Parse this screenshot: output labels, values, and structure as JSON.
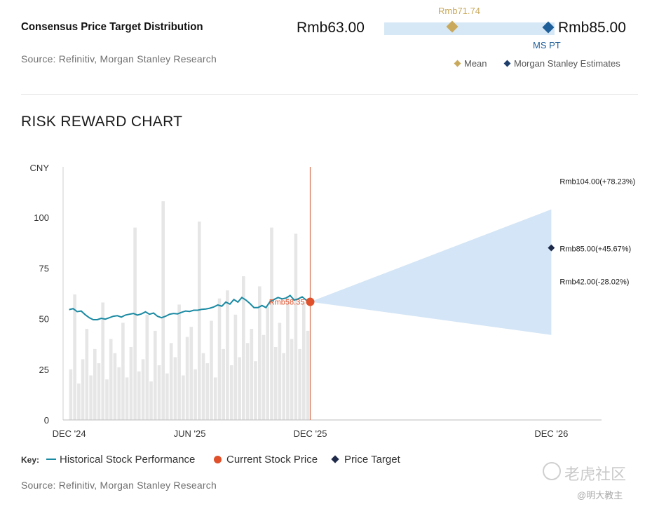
{
  "consensus": {
    "title": "Consensus Price Target Distribution",
    "source": "Source: Refinitiv, Morgan Stanley Research",
    "low": "Rmb63.00",
    "high": "Rmb85.00",
    "mean_value": "Rmb71.74",
    "ms_pt_label": "MS PT",
    "legend_mean": "Mean",
    "legend_ms": "Morgan Stanley Estimates",
    "colors": {
      "mean": "#c9a95b",
      "ms": "#1f5f99",
      "bar": "#d6e8f6"
    }
  },
  "risk_reward": {
    "title": "RISK REWARD CHART",
    "key": {
      "label": "Key:",
      "historical": "Historical Stock Performance",
      "current": "Current Stock Price",
      "target": "Price Target"
    },
    "source": "Source: Refinitiv, Morgan Stanley Research"
  },
  "watermark": {
    "text": "老虎社区",
    "handle": "@明大教主"
  },
  "chart_data": {
    "type": "line",
    "title": "RISK REWARD CHART",
    "ylabel": "CNY",
    "ylim": [
      0,
      125
    ],
    "yticks": [
      0,
      25,
      50,
      75,
      100
    ],
    "xticks": [
      "DEC '24",
      "JUN '25",
      "DEC '25",
      "DEC '26"
    ],
    "xtick_months": [
      0,
      6,
      12,
      24
    ],
    "x_range_months": [
      -0.3,
      26.5
    ],
    "current_price": {
      "label": "Rmb58.35",
      "value": 58.35,
      "month": 12
    },
    "targets": [
      {
        "label": "Rmb104.00(+78.23%)",
        "value": 104.0,
        "month": 24
      },
      {
        "label": "Rmb85.00(+45.67%)",
        "value": 85.0,
        "month": 24
      },
      {
        "label": "Rmb42.00(-28.02%)",
        "value": 42.0,
        "month": 24
      }
    ],
    "historical": {
      "name": "Historical Stock Performance",
      "months": [
        0,
        0.2,
        0.4,
        0.6,
        0.8,
        1,
        1.2,
        1.4,
        1.6,
        1.8,
        2,
        2.2,
        2.4,
        2.6,
        2.8,
        3,
        3.2,
        3.4,
        3.6,
        3.8,
        4,
        4.2,
        4.4,
        4.6,
        4.8,
        5,
        5.2,
        5.4,
        5.6,
        5.8,
        6,
        6.2,
        6.4,
        6.6,
        6.8,
        7,
        7.2,
        7.4,
        7.6,
        7.8,
        8,
        8.2,
        8.4,
        8.6,
        8.8,
        9,
        9.2,
        9.4,
        9.6,
        9.8,
        10,
        10.2,
        10.4,
        10.6,
        10.8,
        11,
        11.2,
        11.4,
        11.6,
        11.8,
        12
      ],
      "values": [
        54.5,
        55,
        53.5,
        53.8,
        52,
        50.5,
        49.5,
        49.5,
        50.2,
        49.8,
        50.5,
        51.2,
        51.5,
        50.8,
        51.8,
        52.2,
        52.6,
        51.8,
        52.4,
        53.4,
        52.2,
        52.8,
        51.2,
        50.5,
        51.2,
        52.2,
        52.6,
        52.4,
        53.2,
        53.8,
        53.6,
        54.2,
        54.2,
        54.6,
        54.8,
        55.2,
        55.8,
        56.8,
        56.2,
        58.2,
        57.2,
        59.5,
        58.2,
        60.5,
        59.2,
        57.5,
        55.5,
        55.5,
        56.5,
        55.5,
        58.5,
        59.5,
        60.5,
        59.8,
        60.2,
        61.5,
        59.2,
        59.8,
        60.8,
        59.2,
        58.35
      ]
    },
    "volume_bars": {
      "note": "background relative activity, in chart value units",
      "values": [
        25,
        62,
        18,
        30,
        45,
        22,
        35,
        28,
        58,
        20,
        40,
        33,
        26,
        48,
        21,
        36,
        95,
        24,
        30,
        52,
        19,
        44,
        27,
        108,
        23,
        38,
        31,
        57,
        22,
        41,
        46,
        25,
        98,
        33,
        28,
        49,
        21,
        60,
        35,
        64,
        27,
        52,
        31,
        71,
        38,
        45,
        29,
        66,
        42,
        56,
        95,
        36,
        48,
        33,
        61,
        40,
        92,
        35,
        58,
        44
      ]
    }
  }
}
